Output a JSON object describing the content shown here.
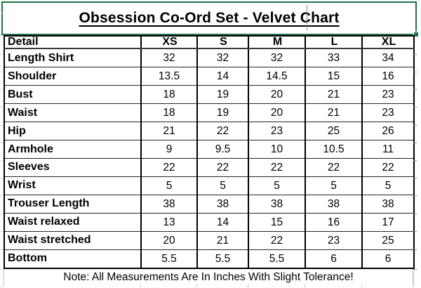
{
  "title": "Obsession Co-Ord Set - Velvet Chart",
  "table": {
    "columns": [
      "Detail",
      "XS",
      "S",
      "M",
      "L",
      "XL"
    ],
    "rows": [
      {
        "label": "Length Shirt",
        "values": [
          "32",
          "32",
          "32",
          "33",
          "34"
        ]
      },
      {
        "label": "Shoulder",
        "values": [
          "13.5",
          "14",
          "14.5",
          "15",
          "16"
        ]
      },
      {
        "label": "Bust",
        "values": [
          "18",
          "19",
          "20",
          "21",
          "23"
        ]
      },
      {
        "label": "Waist",
        "values": [
          "18",
          "19",
          "20",
          "21",
          "23"
        ]
      },
      {
        "label": "Hip",
        "values": [
          "21",
          "22",
          "23",
          "25",
          "26"
        ]
      },
      {
        "label": "Armhole",
        "values": [
          "9",
          "9.5",
          "10",
          "10.5",
          "11"
        ]
      },
      {
        "label": "Sleeves",
        "values": [
          "22",
          "22",
          "22",
          "22",
          "22"
        ]
      },
      {
        "label": "Wrist",
        "values": [
          "5",
          "5",
          "5",
          "5",
          "5"
        ]
      },
      {
        "label": "Trouser Length",
        "values": [
          "38",
          "38",
          "38",
          "38",
          "38"
        ]
      },
      {
        "label": "Waist relaxed",
        "values": [
          "13",
          "14",
          "15",
          "16",
          "17"
        ]
      },
      {
        "label": "Waist stretched",
        "values": [
          "20",
          "21",
          "22",
          "23",
          "25"
        ]
      },
      {
        "label": "Bottom",
        "values": [
          "5.5",
          "5.5",
          "5.5",
          "6",
          "6"
        ]
      }
    ]
  },
  "note": "Note: All Measurements Are In Inches With Slight Tolerance!",
  "colors": {
    "selection_green": "#217346",
    "border_black": "#000000",
    "gridline_faint": "#d9d9d9"
  }
}
